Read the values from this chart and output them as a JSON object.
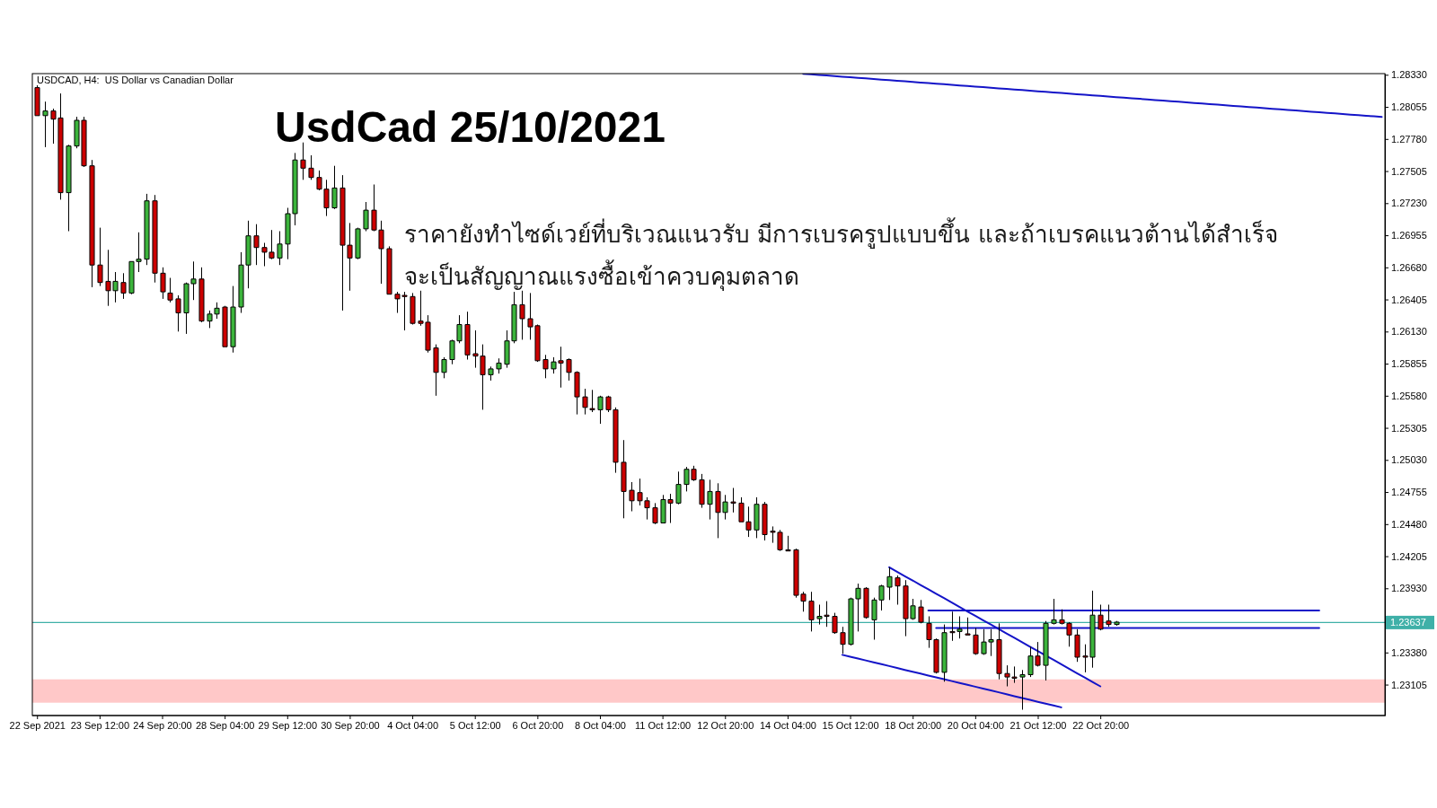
{
  "chart_data": {
    "type": "candlestick",
    "title": "UsdCad 25/10/2021",
    "subtitle": "USDCAD, H4:  US Dollar vs Canadian Dollar",
    "annotations": [
      "ราคายังทำไซด์เวย์ที่บริเวณแนวรับ มีการเบรครูปแบบขึ้น และถ้าเบรคแนวต้านได้สำเร็จ",
      "จะเป็นสัญญาณแรงซื้อเข้าควบคุมตลาด"
    ],
    "categories": [
      "22 Sep 2021",
      null,
      null,
      null,
      null,
      null,
      null,
      null,
      "23 Sep 12:00",
      null,
      null,
      null,
      null,
      null,
      null,
      null,
      "24 Sep 20:00",
      null,
      null,
      null,
      null,
      null,
      null,
      null,
      "28 Sep 04:00",
      null,
      null,
      null,
      null,
      null,
      null,
      null,
      "29 Sep 12:00",
      null,
      null,
      null,
      null,
      null,
      null,
      null,
      "30 Sep 20:00",
      null,
      null,
      null,
      null,
      null,
      null,
      null,
      "4 Oct 04:00",
      null,
      null,
      null,
      null,
      null,
      null,
      null,
      "5 Oct 12:00",
      null,
      null,
      null,
      null,
      null,
      null,
      null,
      "6 Oct 20:00",
      null,
      null,
      null,
      null,
      null,
      null,
      null,
      "8 Oct 04:00",
      null,
      null,
      null,
      null,
      null,
      null,
      null,
      "11 Oct 12:00",
      null,
      null,
      null,
      null,
      null,
      null,
      null,
      "12 Oct 20:00",
      null,
      null,
      null,
      null,
      null,
      null,
      null,
      "14 Oct 04:00",
      null,
      null,
      null,
      null,
      null,
      null,
      null,
      "15 Oct 12:00",
      null,
      null,
      null,
      null,
      null,
      null,
      null,
      "18 Oct 20:00",
      null,
      null,
      null,
      null,
      null,
      null,
      null,
      "20 Oct 04:00",
      null,
      null,
      null,
      null,
      null,
      null,
      null,
      "21 Oct 12:00",
      null,
      null,
      null,
      null,
      null,
      null,
      null,
      "22 Oct 20:00",
      null,
      null,
      null,
      null,
      null,
      null,
      null,
      null,
      null,
      null,
      null,
      null,
      null,
      null,
      null,
      null,
      null,
      null,
      null,
      null,
      null,
      null,
      null,
      null,
      null,
      null,
      null,
      null,
      null,
      null,
      null,
      null,
      null,
      null,
      null,
      null
    ],
    "ylim": [
      1.2284,
      1.2834
    ],
    "yticks": [
      {
        "value": 1.2833,
        "label": "1.28330"
      },
      1.28055,
      {
        "value": 1.2778,
        "label": "1.27780"
      },
      1.27505,
      {
        "value": 1.2723,
        "label": "1.27230"
      },
      1.26955,
      {
        "value": 1.2668,
        "label": "1.26680"
      },
      1.26405,
      {
        "value": 1.2613,
        "label": "1.26130"
      },
      1.25855,
      {
        "value": 1.2558,
        "label": "1.25580"
      },
      1.25305,
      {
        "value": 1.2503,
        "label": "1.25030"
      },
      1.24755,
      {
        "value": 1.2448,
        "label": "1.24480"
      },
      1.24205,
      {
        "value": 1.2393,
        "label": "1.23930"
      },
      {
        "value": 1.2338,
        "label": "1.23380"
      },
      1.23105
    ],
    "bands": [
      {
        "axis": "y",
        "from": 1.2295,
        "to": 1.2315,
        "color": "#ffc8c8"
      }
    ],
    "ref_lines": [
      {
        "axis": "y",
        "value": 1.23637,
        "label": "1.23637",
        "color": "#3fb0a8"
      }
    ],
    "series": [
      {
        "colors": [
          "#cc0000",
          "#3cb43c",
          "#cc0000",
          "#cc0000",
          "#3cb43c",
          "#3cb43c",
          "#cc0000",
          "#cc0000",
          "#cc0000",
          "#cc0000",
          "#3cb43c",
          "#cc0000",
          "#3cb43c",
          "#3cb43c",
          "#3cb43c",
          "#cc0000",
          "#cc0000",
          "#cc0000",
          "#cc0000",
          "#3cb43c",
          "#3cb43c",
          "#cc0000",
          "#3cb43c",
          "#3cb43c",
          "#cc0000",
          "#3cb43c",
          "#3cb43c",
          "#3cb43c",
          "#cc0000",
          "#cc0000",
          "#cc0000",
          "#3cb43c",
          "#3cb43c",
          "#3cb43c",
          "#cc0000",
          "#cc0000",
          "#cc0000",
          "#cc0000",
          "#3cb43c",
          "#cc0000",
          "#cc0000",
          "#3cb43c",
          "#3cb43c",
          "#cc0000",
          "#cc0000",
          "#cc0000",
          "#cc0000",
          "#cc0000",
          "#cc0000",
          "#cc0000",
          "#cc0000",
          "#cc0000",
          "#3cb43c",
          "#3cb43c",
          "#3cb43c",
          "#cc0000",
          "#cc0000",
          "#cc0000",
          "#3cb43c",
          "#3cb43c",
          "#3cb43c",
          "#3cb43c",
          "#cc0000",
          "#cc0000",
          "#cc0000",
          "#cc0000",
          "#3cb43c",
          "#cc0000",
          "#cc0000",
          "#cc0000",
          "#cc0000",
          "#cc0000",
          "#3cb43c",
          "#cc0000",
          "#cc0000",
          "#cc0000",
          "#cc0000",
          "#cc0000",
          "#cc0000",
          "#cc0000",
          "#3cb43c",
          "#cc0000",
          "#3cb43c",
          "#3cb43c",
          "#cc0000",
          "#cc0000",
          "#3cb43c",
          "#cc0000",
          "#3cb43c",
          "#cc0000",
          "#cc0000",
          "#cc0000",
          "#3cb43c",
          "#cc0000",
          "#cc0000",
          "#cc0000",
          "#cc0000",
          "#cc0000",
          "#cc0000",
          "#cc0000",
          "#3cb43c",
          "#cc0000",
          "#cc0000",
          "#cc0000",
          "#3cb43c",
          "#3cb43c",
          "#cc0000",
          "#3cb43c",
          "#3cb43c",
          "#3cb43c",
          "#cc0000",
          "#cc0000",
          "#3cb43c",
          "#cc0000",
          "#cc0000",
          "#cc0000",
          "#3cb43c",
          "#cc0000",
          "#3cb43c",
          "#cc0000",
          "#cc0000",
          "#3cb43c",
          "#3cb43c",
          "#cc0000",
          "#cc0000",
          "#cc0000",
          "#3cb43c",
          "#3cb43c",
          "#cc0000",
          "#3cb43c",
          "#3cb43c",
          "#cc0000",
          "#cc0000",
          "#cc0000",
          "#cc0000",
          "#3cb43c",
          "#cc0000",
          "#cc0000",
          "#3cb43c",
          null,
          null,
          null,
          null,
          null,
          null,
          null,
          null,
          null,
          null,
          null,
          null,
          null,
          null,
          null,
          null,
          null,
          null,
          null,
          null,
          null,
          null,
          null,
          null,
          null,
          null,
          null,
          null,
          null,
          null,
          null,
          null,
          null,
          null
        ],
        "ohlc": [
          [
            1.2822,
            1.2824,
            1.2798,
            1.2798
          ],
          [
            1.2798,
            1.281,
            1.2771,
            1.2802
          ],
          [
            1.2802,
            1.2804,
            1.2774,
            1.2795
          ],
          [
            1.2796,
            1.2817,
            1.2726,
            1.2732
          ],
          [
            1.2732,
            1.2773,
            1.2699,
            1.2772
          ],
          [
            1.2772,
            1.2797,
            1.277,
            1.2794
          ],
          [
            1.2794,
            1.2797,
            1.2754,
            1.2755
          ],
          [
            1.2755,
            1.276,
            1.2651,
            1.267
          ],
          [
            1.267,
            1.2702,
            1.2652,
            1.2655
          ],
          [
            1.2656,
            1.2683,
            1.2635,
            1.2648
          ],
          [
            1.2648,
            1.2664,
            1.2638,
            1.2656
          ],
          [
            1.2655,
            1.2663,
            1.2641,
            1.2646
          ],
          [
            1.2646,
            1.2673,
            1.2645,
            1.2673
          ],
          [
            1.2673,
            1.2698,
            1.2664,
            1.2675
          ],
          [
            1.2675,
            1.2731,
            1.267,
            1.2725
          ],
          [
            1.2725,
            1.273,
            1.2655,
            1.2663
          ],
          [
            1.2663,
            1.2668,
            1.2641,
            1.2647
          ],
          [
            1.2646,
            1.2659,
            1.2638,
            1.264
          ],
          [
            1.2641,
            1.2644,
            1.2613,
            1.2629
          ],
          [
            1.2629,
            1.2655,
            1.2611,
            1.2654
          ],
          [
            1.2654,
            1.2673,
            1.264,
            1.2658
          ],
          [
            1.2658,
            1.2668,
            1.2621,
            1.2622
          ],
          [
            1.2622,
            1.2631,
            1.2616,
            1.2628
          ],
          [
            1.2628,
            1.2638,
            1.2624,
            1.2633
          ],
          [
            1.2634,
            1.2635,
            1.26,
            1.26
          ],
          [
            1.26,
            1.2652,
            1.2595,
            1.2634
          ],
          [
            1.2634,
            1.2681,
            1.2629,
            1.267
          ],
          [
            1.267,
            1.2708,
            1.265,
            1.2695
          ],
          [
            1.2695,
            1.2705,
            1.267,
            1.2685
          ],
          [
            1.2685,
            1.2689,
            1.2669,
            1.2681
          ],
          [
            1.2681,
            1.27,
            1.2675,
            1.2676
          ],
          [
            1.2676,
            1.2699,
            1.267,
            1.2688
          ],
          [
            1.2688,
            1.2719,
            1.2675,
            1.2714
          ],
          [
            1.2714,
            1.2766,
            1.2704,
            1.276
          ],
          [
            1.276,
            1.2775,
            1.2743,
            1.2753
          ],
          [
            1.2753,
            1.2764,
            1.2743,
            1.2745
          ],
          [
            1.2745,
            1.2751,
            1.2734,
            1.2735
          ],
          [
            1.2735,
            1.2743,
            1.2712,
            1.2719
          ],
          [
            1.2719,
            1.2755,
            1.2718,
            1.2736
          ],
          [
            1.2736,
            1.2747,
            1.2631,
            1.2687
          ],
          [
            1.2687,
            1.2706,
            1.2648,
            1.2676
          ],
          [
            1.2676,
            1.2702,
            1.2675,
            1.2701
          ],
          [
            1.2701,
            1.2724,
            1.2699,
            1.2717
          ],
          [
            1.2717,
            1.2739,
            1.2699,
            1.27
          ],
          [
            1.27,
            1.2708,
            1.2654,
            1.2684
          ],
          [
            1.2684,
            1.2686,
            1.2645,
            1.2645
          ],
          [
            1.2645,
            1.2647,
            1.2629,
            1.2641
          ],
          [
            1.2644,
            1.2647,
            1.2614,
            1.2643
          ],
          [
            1.2643,
            1.2646,
            1.2619,
            1.262
          ],
          [
            1.2622,
            1.2648,
            1.2618,
            1.262
          ],
          [
            1.2621,
            1.2627,
            1.2595,
            1.2597
          ],
          [
            1.2599,
            1.2602,
            1.2558,
            1.2578
          ],
          [
            1.2578,
            1.2591,
            1.2573,
            1.2589
          ],
          [
            1.2589,
            1.2606,
            1.2585,
            1.2605
          ],
          [
            1.2605,
            1.2627,
            1.2603,
            1.2619
          ],
          [
            1.2619,
            1.263,
            1.2589,
            1.2593
          ],
          [
            1.2594,
            1.2614,
            1.2582,
            1.2592
          ],
          [
            1.2592,
            1.2602,
            1.2546,
            1.2576
          ],
          [
            1.2576,
            1.2583,
            1.2571,
            1.2581
          ],
          [
            1.2581,
            1.259,
            1.2577,
            1.2586
          ],
          [
            1.2585,
            1.2614,
            1.2582,
            1.2605
          ],
          [
            1.2605,
            1.2647,
            1.2603,
            1.2636
          ],
          [
            1.2636,
            1.2648,
            1.2606,
            1.2624
          ],
          [
            1.2624,
            1.2646,
            1.2606,
            1.2617
          ],
          [
            1.2618,
            1.2619,
            1.2587,
            1.2588
          ],
          [
            1.2589,
            1.2593,
            1.2573,
            1.2581
          ],
          [
            1.2581,
            1.2591,
            1.2577,
            1.2587
          ],
          [
            1.2588,
            1.26,
            1.2565,
            1.2586
          ],
          [
            1.2589,
            1.259,
            1.2571,
            1.2578
          ],
          [
            1.2578,
            1.2579,
            1.2542,
            1.2557
          ],
          [
            1.2557,
            1.2564,
            1.2542,
            1.2548
          ],
          [
            1.2547,
            1.2563,
            1.2544,
            1.2546
          ],
          [
            1.2546,
            1.2558,
            1.2534,
            1.2557
          ],
          [
            1.2557,
            1.2558,
            1.2544,
            1.2546
          ],
          [
            1.2546,
            1.2548,
            1.2492,
            1.2501
          ],
          [
            1.2501,
            1.252,
            1.2453,
            1.2476
          ],
          [
            1.2477,
            1.2484,
            1.2459,
            1.2468
          ],
          [
            1.2475,
            1.2487,
            1.2464,
            1.2468
          ],
          [
            1.2468,
            1.2471,
            1.2452,
            1.2462
          ],
          [
            1.2462,
            1.2466,
            1.2448,
            1.2449
          ],
          [
            1.2449,
            1.2473,
            1.2449,
            1.2469
          ],
          [
            1.2469,
            1.2474,
            1.2449,
            1.2466
          ],
          [
            1.2466,
            1.2493,
            1.2465,
            1.2482
          ],
          [
            1.2482,
            1.2497,
            1.2476,
            1.2495
          ],
          [
            1.2495,
            1.2498,
            1.2485,
            1.2486
          ],
          [
            1.2486,
            1.2491,
            1.2462,
            1.2465
          ],
          [
            1.2465,
            1.2486,
            1.2452,
            1.2476
          ],
          [
            1.2476,
            1.2483,
            1.2436,
            1.2458
          ],
          [
            1.2458,
            1.2473,
            1.2452,
            1.2467
          ],
          [
            1.2467,
            1.2479,
            1.2458,
            1.2466
          ],
          [
            1.2466,
            1.2471,
            1.245,
            1.245
          ],
          [
            1.245,
            1.2463,
            1.2437,
            1.2443
          ],
          [
            1.2443,
            1.2471,
            1.2436,
            1.2465
          ],
          [
            1.2465,
            1.2467,
            1.2434,
            1.2439
          ],
          [
            1.2442,
            1.2446,
            1.2432,
            1.2441
          ],
          [
            1.2441,
            1.2443,
            1.2425,
            1.2426
          ],
          [
            1.2426,
            1.2438,
            1.2425,
            1.2425
          ],
          [
            1.2426,
            1.2427,
            1.2385,
            1.2387
          ],
          [
            1.2388,
            1.239,
            1.2373,
            1.2382
          ],
          [
            1.2382,
            1.239,
            1.2356,
            1.2366
          ],
          [
            1.2367,
            1.2379,
            1.2362,
            1.2369
          ],
          [
            1.237,
            1.2382,
            1.236,
            1.2369
          ],
          [
            1.2369,
            1.2372,
            1.2354,
            1.2355
          ],
          [
            1.2355,
            1.236,
            1.2337,
            1.2345
          ],
          [
            1.2345,
            1.2385,
            1.2344,
            1.2384
          ],
          [
            1.2384,
            1.2397,
            1.2356,
            1.2393
          ],
          [
            1.2393,
            1.2394,
            1.2367,
            1.2368
          ],
          [
            1.2366,
            1.2385,
            1.2349,
            1.2383
          ],
          [
            1.2383,
            1.2396,
            1.2374,
            1.2395
          ],
          [
            1.2394,
            1.2411,
            1.2383,
            1.2403
          ],
          [
            1.2402,
            1.2404,
            1.2379,
            1.2395
          ],
          [
            1.2395,
            1.24,
            1.2352,
            1.2367
          ],
          [
            1.2367,
            1.2384,
            1.2366,
            1.2378
          ],
          [
            1.2377,
            1.2383,
            1.2363,
            1.2364
          ],
          [
            1.2363,
            1.2369,
            1.2342,
            1.2349
          ],
          [
            1.2349,
            1.235,
            1.232,
            1.2321
          ],
          [
            1.2321,
            1.2362,
            1.2313,
            1.2355
          ],
          [
            1.2356,
            1.2373,
            1.2348,
            1.2355
          ],
          [
            1.2356,
            1.2369,
            1.235,
            1.2358
          ],
          [
            1.2354,
            1.2368,
            1.2353,
            1.2353
          ],
          [
            1.2353,
            1.2359,
            1.2336,
            1.2337
          ],
          [
            1.2337,
            1.2358,
            1.2336,
            1.2347
          ],
          [
            1.2347,
            1.2358,
            1.2335,
            1.2349
          ],
          [
            1.2349,
            1.2363,
            1.2315,
            1.232
          ],
          [
            1.232,
            1.2327,
            1.2309,
            1.2317
          ],
          [
            1.2317,
            1.2326,
            1.2312,
            1.2316
          ],
          [
            1.2317,
            1.2323,
            1.2289,
            1.2319
          ],
          [
            1.2319,
            1.2343,
            1.2317,
            1.2335
          ],
          [
            1.2335,
            1.2347,
            1.2326,
            1.2327
          ],
          [
            1.2327,
            1.2365,
            1.2314,
            1.2363
          ],
          [
            1.2363,
            1.2384,
            1.2362,
            1.2366
          ],
          [
            1.2366,
            1.2375,
            1.2362,
            1.2363
          ],
          [
            1.2363,
            1.2364,
            1.2343,
            1.2353
          ],
          [
            1.2353,
            1.2358,
            1.233,
            1.2334
          ],
          [
            1.2335,
            1.2345,
            1.2321,
            1.2334
          ],
          [
            1.2334,
            1.2391,
            1.2325,
            1.237
          ],
          [
            1.237,
            1.2379,
            1.2357,
            1.2358
          ],
          [
            1.2365,
            1.2379,
            1.236,
            1.2362
          ],
          [
            1.2362,
            1.2365,
            1.2361,
            1.2364
          ],
          null,
          null,
          null,
          null,
          null,
          null,
          null,
          null,
          null,
          null,
          null,
          null,
          null,
          null,
          null,
          null,
          null,
          null,
          null,
          null,
          null,
          null,
          null,
          null,
          null,
          null,
          null,
          null,
          null,
          null,
          null,
          null,
          null,
          null
        ]
      },
      {
        "type": "line",
        "color": "#1414c8",
        "values": [
          null,
          null,
          null,
          null,
          null,
          null,
          null,
          null,
          null,
          null,
          null,
          null,
          null,
          null,
          null,
          null,
          null,
          null,
          null,
          null,
          null,
          null,
          null,
          null,
          null,
          null,
          null,
          null,
          null,
          null,
          null,
          null,
          null,
          null,
          null,
          null,
          null,
          null,
          null,
          null,
          null,
          null,
          null,
          null,
          null,
          null,
          null,
          null,
          null,
          null,
          null,
          null,
          null,
          null,
          null,
          null,
          null,
          null,
          null,
          null,
          null,
          null,
          null,
          null,
          null,
          null,
          null,
          null,
          null,
          null,
          null,
          null,
          null,
          null,
          null,
          null,
          null,
          null,
          null,
          null,
          null,
          null,
          null,
          null,
          null,
          null,
          null,
          null,
          null,
          null,
          null,
          null,
          null,
          null,
          null,
          null,
          null,
          null,
          1.28339,
          1.28334,
          1.28329,
          1.28324,
          1.28319,
          1.28314,
          1.28309,
          1.28304,
          1.28299,
          1.28294,
          1.28289,
          1.28284,
          1.28279,
          1.28274,
          1.28269,
          1.28264,
          1.28259,
          1.28254,
          1.28249,
          1.28244,
          1.28239,
          1.28234,
          1.28229,
          1.28224,
          1.28219,
          1.28214,
          1.28209,
          1.28204,
          1.28199,
          1.28194,
          1.28189,
          1.28184,
          1.28179,
          1.28174,
          1.28169,
          1.28164,
          1.28159,
          1.28154,
          1.28149,
          1.28144,
          1.28139,
          1.28134,
          1.28129,
          1.28124,
          1.28119,
          1.28114,
          1.28109,
          1.28104,
          1.28099,
          1.28094,
          1.28089,
          1.28084,
          1.28079,
          1.28074,
          1.28069,
          1.28064,
          1.28059,
          1.28054,
          1.28049,
          1.28044,
          1.28039,
          1.28034,
          1.28029,
          1.28024,
          1.28019,
          1.28014,
          1.28009,
          1.28004,
          1.27999,
          1.27994,
          1.27989,
          1.27984,
          1.27979,
          1.27974,
          1.27969
        ]
      },
      {
        "type": "line",
        "color": "#1414c8",
        "values": [
          null,
          null,
          null,
          null,
          null,
          null,
          null,
          null,
          null,
          null,
          null,
          null,
          null,
          null,
          null,
          null,
          null,
          null,
          null,
          null,
          null,
          null,
          null,
          null,
          null,
          null,
          null,
          null,
          null,
          null,
          null,
          null,
          null,
          null,
          null,
          null,
          null,
          null,
          null,
          null,
          null,
          null,
          null,
          null,
          null,
          null,
          null,
          null,
          null,
          null,
          null,
          null,
          null,
          null,
          null,
          null,
          null,
          null,
          null,
          null,
          null,
          null,
          null,
          null,
          null,
          null,
          null,
          null,
          null,
          null,
          null,
          null,
          null,
          null,
          null,
          null,
          null,
          null,
          null,
          null,
          null,
          null,
          null,
          null,
          null,
          null,
          null,
          null,
          null,
          null,
          null,
          null,
          null,
          null,
          null,
          null,
          null,
          null,
          null,
          null,
          null,
          null,
          null,
          null,
          null,
          null,
          null,
          null,
          null,
          1.2411,
          1.24072,
          1.24034,
          1.23997,
          1.23959,
          1.23921,
          1.23883,
          1.23846,
          1.23808,
          1.2377,
          1.23732,
          1.23694,
          1.23657,
          1.23619,
          1.23581,
          1.23543,
          1.23506,
          1.23468,
          1.2343,
          1.23392,
          1.23354,
          1.23317,
          1.23279,
          1.23241,
          1.23203,
          1.23166,
          1.23128,
          1.2309,
          null,
          null,
          null,
          null,
          null,
          null,
          null,
          null,
          null,
          null,
          null,
          null,
          null,
          null,
          null,
          null,
          null,
          null,
          null,
          null,
          null,
          null,
          null,
          null,
          null,
          null,
          null,
          null,
          null,
          null,
          null,
          null,
          null,
          null,
          null,
          null
        ]
      },
      {
        "type": "line",
        "color": "#1414c8",
        "values": [
          null,
          null,
          null,
          null,
          null,
          null,
          null,
          null,
          null,
          null,
          null,
          null,
          null,
          null,
          null,
          null,
          null,
          null,
          null,
          null,
          null,
          null,
          null,
          null,
          null,
          null,
          null,
          null,
          null,
          null,
          null,
          null,
          null,
          null,
          null,
          null,
          null,
          null,
          null,
          null,
          null,
          null,
          null,
          null,
          null,
          null,
          null,
          null,
          null,
          null,
          null,
          null,
          null,
          null,
          null,
          null,
          null,
          null,
          null,
          null,
          null,
          null,
          null,
          null,
          null,
          null,
          null,
          null,
          null,
          null,
          null,
          null,
          null,
          null,
          null,
          null,
          null,
          null,
          null,
          null,
          null,
          null,
          null,
          null,
          null,
          null,
          null,
          null,
          null,
          null,
          null,
          null,
          null,
          null,
          null,
          null,
          null,
          null,
          null,
          null,
          null,
          null,
          null,
          1.2336,
          1.23344,
          1.23328,
          1.23312,
          1.23296,
          1.2328,
          1.23264,
          1.23248,
          1.23231,
          1.23215,
          1.23199,
          1.23183,
          1.23167,
          1.23151,
          1.23135,
          1.23119,
          1.23103,
          1.23087,
          1.23071,
          1.23055,
          1.23039,
          1.23023,
          1.23006,
          1.2299,
          1.22974,
          1.22958,
          1.22942,
          1.22926,
          1.2291,
          null,
          null,
          null,
          null,
          null,
          null,
          null,
          null,
          null,
          null,
          null,
          null,
          null,
          null,
          null,
          null,
          null,
          null,
          null,
          null,
          null,
          null,
          null,
          null,
          null,
          null,
          null,
          null,
          null,
          null,
          null,
          null,
          null,
          null,
          null,
          null,
          null,
          null,
          null,
          null,
          null
        ]
      },
      {
        "type": "line",
        "color": "#1414c8",
        "values": [
          null,
          null,
          null,
          null,
          null,
          null,
          null,
          null,
          null,
          null,
          null,
          null,
          null,
          null,
          null,
          null,
          null,
          null,
          null,
          null,
          null,
          null,
          null,
          null,
          null,
          null,
          null,
          null,
          null,
          null,
          null,
          null,
          null,
          null,
          null,
          null,
          null,
          null,
          null,
          null,
          null,
          null,
          null,
          null,
          null,
          null,
          null,
          null,
          null,
          null,
          null,
          null,
          null,
          null,
          null,
          null,
          null,
          null,
          null,
          null,
          null,
          null,
          null,
          null,
          null,
          null,
          null,
          null,
          null,
          null,
          null,
          null,
          null,
          null,
          null,
          null,
          null,
          null,
          null,
          null,
          null,
          null,
          null,
          null,
          null,
          null,
          null,
          null,
          null,
          null,
          null,
          null,
          null,
          null,
          null,
          null,
          null,
          null,
          null,
          null,
          null,
          null,
          null,
          null,
          null,
          null,
          null,
          null,
          null,
          null,
          null,
          null,
          null,
          null,
          1.2374,
          1.2374,
          1.2374,
          1.2374,
          1.2374,
          1.2374,
          1.2374,
          1.2374,
          1.2374,
          1.2374,
          1.2374,
          1.2374,
          1.2374,
          1.2374,
          1.2374,
          1.2374,
          1.2374,
          1.2374,
          1.2374,
          1.2374,
          1.2374,
          1.2374,
          1.2374,
          1.2374,
          1.2374,
          1.2374,
          1.2374,
          1.2374,
          1.2374,
          1.2374,
          1.2374,
          1.2374,
          1.2374,
          1.2374,
          1.2374,
          1.2374,
          1.2374,
          1.2374,
          1.2374,
          1.2374,
          1.2374,
          1.2374,
          1.2374,
          1.2374,
          1.2374,
          1.2374,
          1.2374,
          1.2374,
          1.2374,
          1.2374,
          1.2374,
          null,
          null,
          null,
          null,
          null,
          null,
          null,
          null
        ]
      },
      {
        "type": "line",
        "color": "#1414c8",
        "values": [
          null,
          null,
          null,
          null,
          null,
          null,
          null,
          null,
          null,
          null,
          null,
          null,
          null,
          null,
          null,
          null,
          null,
          null,
          null,
          null,
          null,
          null,
          null,
          null,
          null,
          null,
          null,
          null,
          null,
          null,
          null,
          null,
          null,
          null,
          null,
          null,
          null,
          null,
          null,
          null,
          null,
          null,
          null,
          null,
          null,
          null,
          null,
          null,
          null,
          null,
          null,
          null,
          null,
          null,
          null,
          null,
          null,
          null,
          null,
          null,
          null,
          null,
          null,
          null,
          null,
          null,
          null,
          null,
          null,
          null,
          null,
          null,
          null,
          null,
          null,
          null,
          null,
          null,
          null,
          null,
          null,
          null,
          null,
          null,
          null,
          null,
          null,
          null,
          null,
          null,
          null,
          null,
          null,
          null,
          null,
          null,
          null,
          null,
          null,
          null,
          null,
          null,
          null,
          null,
          null,
          null,
          null,
          null,
          null,
          null,
          null,
          null,
          null,
          null,
          null,
          1.2359,
          1.2359,
          1.2359,
          1.2359,
          1.2359,
          1.2359,
          1.2359,
          1.2359,
          1.2359,
          1.2359,
          1.2359,
          1.2359,
          1.2359,
          1.2359,
          1.2359,
          1.2359,
          1.2359,
          1.2359,
          1.2359,
          1.2359,
          1.2359,
          1.2359,
          1.2359,
          1.2359,
          1.2359,
          1.2359,
          1.2359,
          1.2359,
          1.2359,
          1.2359,
          1.2359,
          1.2359,
          1.2359,
          1.2359,
          1.2359,
          1.2359,
          1.2359,
          1.2359,
          1.2359,
          1.2359,
          1.2359,
          1.2359,
          1.2359,
          1.2359,
          1.2359,
          1.2359,
          1.2359,
          1.2359,
          1.2359,
          1.2359,
          null,
          null,
          null,
          null,
          null,
          null,
          null,
          null
        ]
      }
    ]
  }
}
